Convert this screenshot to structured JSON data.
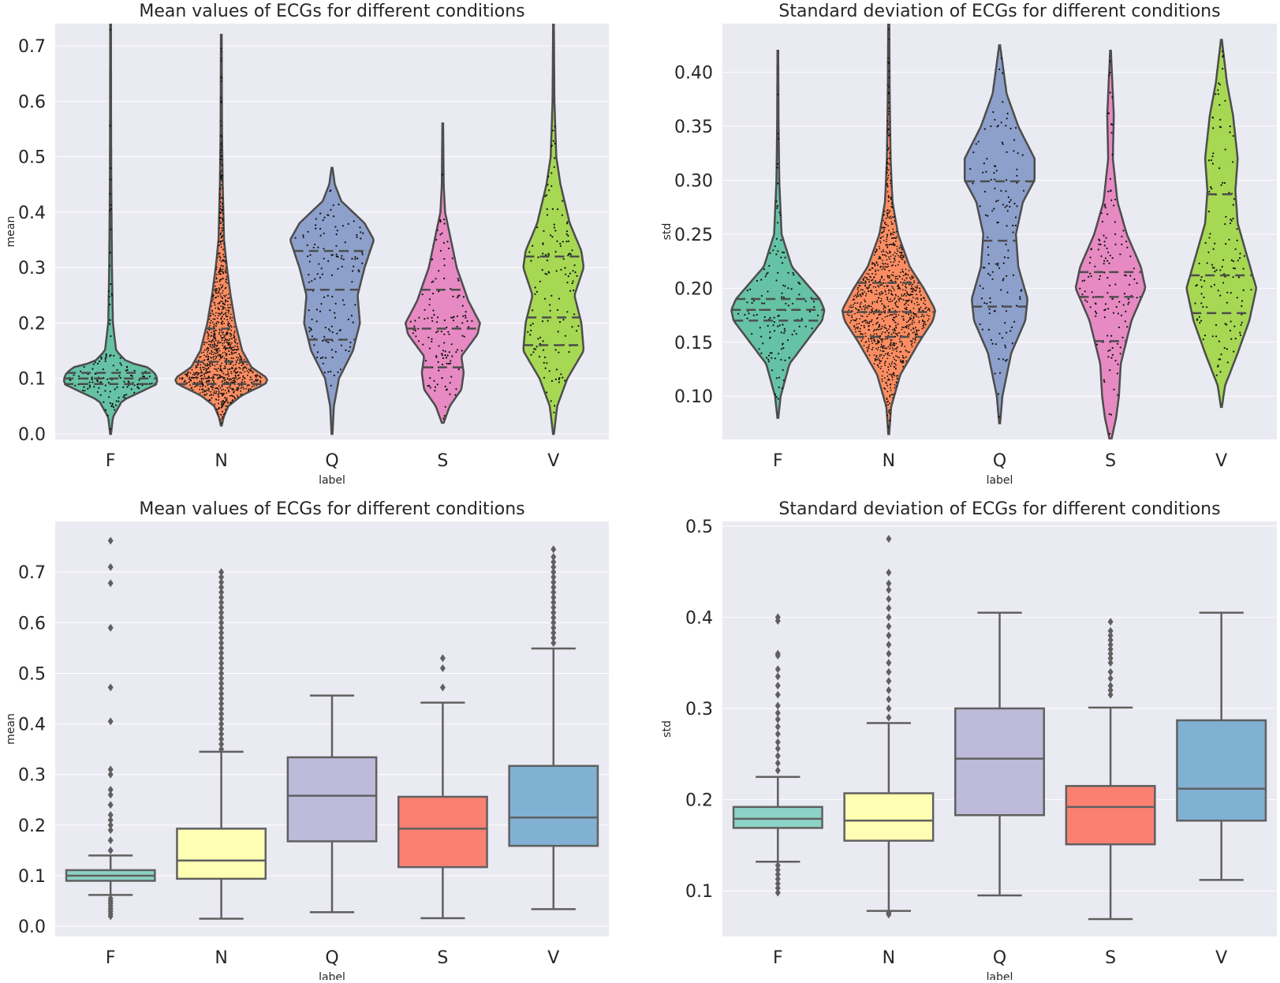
{
  "chart_data": [
    {
      "type": "violin",
      "title": "Mean values of ECGs for different conditions",
      "xlabel": "label",
      "ylabel": "mean",
      "categories": [
        "F",
        "N",
        "Q",
        "S",
        "V"
      ],
      "ylim": [
        -0.01,
        0.74
      ],
      "yticks": [
        "0.0",
        "0.1",
        "0.2",
        "0.3",
        "0.4",
        "0.5",
        "0.6",
        "0.7"
      ],
      "grid": true,
      "colors": [
        "#66c2a5",
        "#fc8d62",
        "#8da0cb",
        "#e78ac3",
        "#a6d854"
      ],
      "violins": [
        {
          "category": "F",
          "min": 0.0,
          "max": 0.76,
          "q1": 0.09,
          "median": 0.1,
          "q3": 0.11,
          "density": [
            [
              0.0,
              0.01
            ],
            [
              0.03,
              0.05
            ],
            [
              0.06,
              0.25
            ],
            [
              0.08,
              0.75
            ],
            [
              0.09,
              1.0
            ],
            [
              0.1,
              1.0
            ],
            [
              0.11,
              0.95
            ],
            [
              0.12,
              0.8
            ],
            [
              0.13,
              0.35
            ],
            [
              0.15,
              0.12
            ],
            [
              0.2,
              0.05
            ],
            [
              0.3,
              0.03
            ],
            [
              0.45,
              0.015
            ],
            [
              0.6,
              0.01
            ],
            [
              0.76,
              0.008
            ]
          ]
        },
        {
          "category": "N",
          "min": 0.015,
          "max": 0.72,
          "q1": 0.09,
          "median": 0.13,
          "q3": 0.19,
          "density": [
            [
              0.015,
              0.01
            ],
            [
              0.03,
              0.05
            ],
            [
              0.05,
              0.15
            ],
            [
              0.07,
              0.45
            ],
            [
              0.09,
              0.95
            ],
            [
              0.1,
              1.0
            ],
            [
              0.12,
              0.65
            ],
            [
              0.15,
              0.45
            ],
            [
              0.2,
              0.3
            ],
            [
              0.25,
              0.2
            ],
            [
              0.3,
              0.12
            ],
            [
              0.35,
              0.06
            ],
            [
              0.45,
              0.03
            ],
            [
              0.55,
              0.015
            ],
            [
              0.72,
              0.008
            ]
          ]
        },
        {
          "category": "Q",
          "min": 0.0,
          "max": 0.48,
          "q1": 0.17,
          "median": 0.26,
          "q3": 0.33,
          "density": [
            [
              0.0,
              0.01
            ],
            [
              0.05,
              0.04
            ],
            [
              0.1,
              0.15
            ],
            [
              0.15,
              0.45
            ],
            [
              0.2,
              0.6
            ],
            [
              0.25,
              0.55
            ],
            [
              0.3,
              0.7
            ],
            [
              0.35,
              0.9
            ],
            [
              0.38,
              0.7
            ],
            [
              0.42,
              0.2
            ],
            [
              0.45,
              0.06
            ],
            [
              0.48,
              0.01
            ]
          ]
        },
        {
          "category": "S",
          "min": 0.02,
          "max": 0.56,
          "q1": 0.12,
          "median": 0.19,
          "q3": 0.26,
          "density": [
            [
              0.02,
              0.02
            ],
            [
              0.05,
              0.15
            ],
            [
              0.08,
              0.4
            ],
            [
              0.11,
              0.45
            ],
            [
              0.14,
              0.4
            ],
            [
              0.18,
              0.75
            ],
            [
              0.2,
              0.8
            ],
            [
              0.24,
              0.55
            ],
            [
              0.3,
              0.3
            ],
            [
              0.36,
              0.15
            ],
            [
              0.4,
              0.05
            ],
            [
              0.45,
              0.02
            ],
            [
              0.56,
              0.008
            ]
          ]
        },
        {
          "category": "V",
          "min": 0.0,
          "max": 0.74,
          "q1": 0.16,
          "median": 0.21,
          "q3": 0.32,
          "density": [
            [
              0.0,
              0.01
            ],
            [
              0.05,
              0.08
            ],
            [
              0.1,
              0.3
            ],
            [
              0.15,
              0.65
            ],
            [
              0.2,
              0.6
            ],
            [
              0.25,
              0.45
            ],
            [
              0.3,
              0.65
            ],
            [
              0.33,
              0.6
            ],
            [
              0.38,
              0.35
            ],
            [
              0.45,
              0.15
            ],
            [
              0.5,
              0.06
            ],
            [
              0.6,
              0.02
            ],
            [
              0.74,
              0.008
            ]
          ]
        }
      ]
    },
    {
      "type": "violin",
      "title": "Standard deviation of ECGs for different conditions",
      "xlabel": "label",
      "ylabel": "std",
      "categories": [
        "F",
        "N",
        "Q",
        "S",
        "V"
      ],
      "ylim": [
        0.06,
        0.445
      ],
      "yticks": [
        "0.10",
        "0.15",
        "0.20",
        "0.25",
        "0.30",
        "0.35",
        "0.40"
      ],
      "grid": true,
      "colors": [
        "#66c2a5",
        "#fc8d62",
        "#8da0cb",
        "#e78ac3",
        "#a6d854"
      ],
      "violins": [
        {
          "category": "F",
          "min": 0.08,
          "max": 0.42,
          "q1": 0.17,
          "median": 0.18,
          "q3": 0.19,
          "density": [
            [
              0.08,
              0.01
            ],
            [
              0.1,
              0.06
            ],
            [
              0.13,
              0.25
            ],
            [
              0.15,
              0.6
            ],
            [
              0.17,
              0.95
            ],
            [
              0.18,
              1.0
            ],
            [
              0.19,
              0.9
            ],
            [
              0.2,
              0.7
            ],
            [
              0.22,
              0.3
            ],
            [
              0.25,
              0.08
            ],
            [
              0.3,
              0.03
            ],
            [
              0.35,
              0.015
            ],
            [
              0.42,
              0.008
            ]
          ]
        },
        {
          "category": "N",
          "min": 0.065,
          "max": 0.48,
          "q1": 0.155,
          "median": 0.178,
          "q3": 0.205,
          "density": [
            [
              0.065,
              0.01
            ],
            [
              0.09,
              0.05
            ],
            [
              0.12,
              0.25
            ],
            [
              0.15,
              0.65
            ],
            [
              0.17,
              0.95
            ],
            [
              0.18,
              1.0
            ],
            [
              0.2,
              0.75
            ],
            [
              0.22,
              0.45
            ],
            [
              0.25,
              0.2
            ],
            [
              0.28,
              0.08
            ],
            [
              0.32,
              0.04
            ],
            [
              0.38,
              0.02
            ],
            [
              0.48,
              0.008
            ]
          ]
        },
        {
          "category": "Q",
          "min": 0.075,
          "max": 0.425,
          "q1": 0.183,
          "median": 0.244,
          "q3": 0.299,
          "density": [
            [
              0.075,
              0.01
            ],
            [
              0.1,
              0.06
            ],
            [
              0.14,
              0.25
            ],
            [
              0.17,
              0.55
            ],
            [
              0.19,
              0.6
            ],
            [
              0.22,
              0.4
            ],
            [
              0.25,
              0.35
            ],
            [
              0.28,
              0.5
            ],
            [
              0.3,
              0.75
            ],
            [
              0.32,
              0.75
            ],
            [
              0.35,
              0.4
            ],
            [
              0.38,
              0.15
            ],
            [
              0.425,
              0.01
            ]
          ]
        },
        {
          "category": "S",
          "min": 0.06,
          "max": 0.42,
          "q1": 0.151,
          "median": 0.192,
          "q3": 0.215,
          "density": [
            [
              0.06,
              0.02
            ],
            [
              0.08,
              0.12
            ],
            [
              0.1,
              0.18
            ],
            [
              0.13,
              0.22
            ],
            [
              0.17,
              0.45
            ],
            [
              0.2,
              0.75
            ],
            [
              0.22,
              0.65
            ],
            [
              0.25,
              0.35
            ],
            [
              0.28,
              0.15
            ],
            [
              0.32,
              0.05
            ],
            [
              0.36,
              0.07
            ],
            [
              0.39,
              0.04
            ],
            [
              0.42,
              0.008
            ]
          ]
        },
        {
          "category": "V",
          "min": 0.09,
          "max": 0.43,
          "q1": 0.177,
          "median": 0.212,
          "q3": 0.287,
          "density": [
            [
              0.09,
              0.01
            ],
            [
              0.11,
              0.08
            ],
            [
              0.14,
              0.35
            ],
            [
              0.17,
              0.6
            ],
            [
              0.2,
              0.75
            ],
            [
              0.23,
              0.55
            ],
            [
              0.26,
              0.35
            ],
            [
              0.29,
              0.3
            ],
            [
              0.32,
              0.35
            ],
            [
              0.36,
              0.25
            ],
            [
              0.39,
              0.12
            ],
            [
              0.43,
              0.01
            ]
          ]
        }
      ]
    },
    {
      "type": "box",
      "title": "Mean values of ECGs for different conditions",
      "xlabel": "label",
      "ylabel": "mean",
      "categories": [
        "F",
        "N",
        "Q",
        "S",
        "V"
      ],
      "ylim": [
        -0.02,
        0.8
      ],
      "yticks": [
        "0.0",
        "0.1",
        "0.2",
        "0.3",
        "0.4",
        "0.5",
        "0.6",
        "0.7"
      ],
      "grid": true,
      "colors": [
        "#8dd3c7",
        "#ffffb3",
        "#bebada",
        "#fb8072",
        "#80b1d3"
      ],
      "boxes": [
        {
          "category": "F",
          "whisker_low": 0.062,
          "q1": 0.09,
          "median": 0.1,
          "q3": 0.111,
          "whisker_high": 0.14,
          "outliers": [
            0.02,
            0.025,
            0.03,
            0.035,
            0.04,
            0.045,
            0.05,
            0.055,
            0.15,
            0.17,
            0.19,
            0.2,
            0.21,
            0.22,
            0.24,
            0.26,
            0.27,
            0.3,
            0.31,
            0.405,
            0.472,
            0.59,
            0.678,
            0.71,
            0.762
          ]
        },
        {
          "category": "N",
          "whisker_low": 0.015,
          "q1": 0.094,
          "median": 0.13,
          "q3": 0.193,
          "whisker_high": 0.345,
          "outliers": [
            0.35,
            0.36,
            0.37,
            0.38,
            0.39,
            0.4,
            0.41,
            0.42,
            0.43,
            0.44,
            0.45,
            0.46,
            0.47,
            0.48,
            0.49,
            0.5,
            0.51,
            0.52,
            0.53,
            0.54,
            0.55,
            0.56,
            0.57,
            0.58,
            0.59,
            0.6,
            0.61,
            0.62,
            0.63,
            0.64,
            0.65,
            0.66,
            0.67,
            0.68,
            0.69,
            0.7
          ]
        },
        {
          "category": "Q",
          "whisker_low": 0.028,
          "q1": 0.168,
          "median": 0.258,
          "q3": 0.334,
          "whisker_high": 0.456,
          "outliers": []
        },
        {
          "category": "S",
          "whisker_low": 0.016,
          "q1": 0.117,
          "median": 0.193,
          "q3": 0.256,
          "whisker_high": 0.442,
          "outliers": [
            0.472,
            0.51,
            0.53
          ]
        },
        {
          "category": "V",
          "whisker_low": 0.034,
          "q1": 0.159,
          "median": 0.215,
          "q3": 0.317,
          "whisker_high": 0.549,
          "outliers": [
            0.56,
            0.57,
            0.58,
            0.59,
            0.6,
            0.61,
            0.62,
            0.63,
            0.64,
            0.65,
            0.66,
            0.67,
            0.68,
            0.69,
            0.7,
            0.71,
            0.72,
            0.73,
            0.745
          ]
        }
      ]
    },
    {
      "type": "box",
      "title": "Standard deviation of ECGs for different conditions",
      "xlabel": "label",
      "ylabel": "std",
      "categories": [
        "F",
        "N",
        "Q",
        "S",
        "V"
      ],
      "ylim": [
        0.05,
        0.505
      ],
      "yticks": [
        "0.1",
        "0.2",
        "0.3",
        "0.4",
        "0.5"
      ],
      "grid": true,
      "colors": [
        "#8dd3c7",
        "#ffffb3",
        "#bebada",
        "#fb8072",
        "#80b1d3"
      ],
      "boxes": [
        {
          "category": "F",
          "whisker_low": 0.132,
          "q1": 0.169,
          "median": 0.179,
          "q3": 0.192,
          "whisker_high": 0.225,
          "outliers": [
            0.098,
            0.103,
            0.108,
            0.113,
            0.118,
            0.123,
            0.128,
            0.232,
            0.24,
            0.248,
            0.256,
            0.263,
            0.272,
            0.28,
            0.288,
            0.295,
            0.303,
            0.315,
            0.325,
            0.335,
            0.343,
            0.358,
            0.36,
            0.396,
            0.4
          ]
        },
        {
          "category": "N",
          "whisker_low": 0.078,
          "q1": 0.155,
          "median": 0.177,
          "q3": 0.207,
          "whisker_high": 0.284,
          "outliers": [
            0.074,
            0.076,
            0.29,
            0.3,
            0.31,
            0.32,
            0.33,
            0.34,
            0.35,
            0.36,
            0.37,
            0.38,
            0.39,
            0.4,
            0.41,
            0.42,
            0.43,
            0.437,
            0.449,
            0.486
          ]
        },
        {
          "category": "Q",
          "whisker_low": 0.095,
          "q1": 0.183,
          "median": 0.245,
          "q3": 0.3,
          "whisker_high": 0.405,
          "outliers": []
        },
        {
          "category": "S",
          "whisker_low": 0.069,
          "q1": 0.151,
          "median": 0.192,
          "q3": 0.215,
          "whisker_high": 0.301,
          "outliers": [
            0.315,
            0.32,
            0.325,
            0.333,
            0.34,
            0.35,
            0.355,
            0.36,
            0.365,
            0.37,
            0.375,
            0.38,
            0.385,
            0.395
          ]
        },
        {
          "category": "V",
          "whisker_low": 0.112,
          "q1": 0.177,
          "median": 0.212,
          "q3": 0.287,
          "whisker_high": 0.405,
          "outliers": []
        }
      ]
    }
  ]
}
